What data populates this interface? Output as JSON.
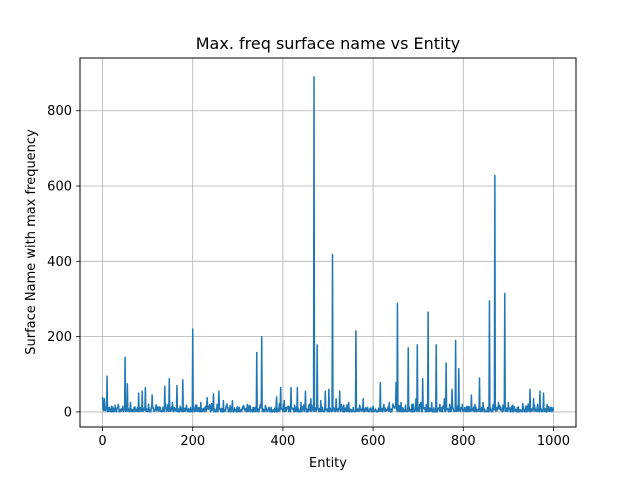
{
  "chart_data": {
    "type": "line",
    "title": "Max. freq surface name vs Entity",
    "xlabel": "Entity",
    "ylabel": "Surface Name with max frequency",
    "xlim": [
      -50,
      1050
    ],
    "ylim": [
      -40,
      940
    ],
    "x_ticks": [
      0,
      200,
      400,
      600,
      800,
      1000
    ],
    "y_ticks": [
      0,
      200,
      400,
      600,
      800
    ],
    "grid": true,
    "line_color": "#1f77b4",
    "series": [
      {
        "x_start": 0,
        "x_end": 1000,
        "baseline_range": [
          0,
          20
        ],
        "points": [
          [
            0,
            40
          ],
          [
            2,
            8
          ],
          [
            4,
            35
          ],
          [
            6,
            5
          ],
          [
            8,
            10
          ],
          [
            10,
            95
          ],
          [
            12,
            5
          ],
          [
            15,
            12
          ],
          [
            18,
            4
          ],
          [
            20,
            15
          ],
          [
            25,
            6
          ],
          [
            28,
            18
          ],
          [
            32,
            8
          ],
          [
            35,
            20
          ],
          [
            40,
            6
          ],
          [
            45,
            15
          ],
          [
            48,
            5
          ],
          [
            50,
            145
          ],
          [
            52,
            10
          ],
          [
            55,
            75
          ],
          [
            58,
            8
          ],
          [
            62,
            25
          ],
          [
            65,
            6
          ],
          [
            70,
            12
          ],
          [
            75,
            5
          ],
          [
            80,
            50
          ],
          [
            83,
            8
          ],
          [
            88,
            55
          ],
          [
            92,
            10
          ],
          [
            95,
            65
          ],
          [
            98,
            8
          ],
          [
            102,
            20
          ],
          [
            105,
            6
          ],
          [
            110,
            45
          ],
          [
            113,
            7
          ],
          [
            118,
            15
          ],
          [
            122,
            6
          ],
          [
            128,
            12
          ],
          [
            133,
            5
          ],
          [
            138,
            68
          ],
          [
            141,
            8
          ],
          [
            145,
            20
          ],
          [
            148,
            88
          ],
          [
            151,
            8
          ],
          [
            155,
            25
          ],
          [
            160,
            6
          ],
          [
            165,
            70
          ],
          [
            168,
            8
          ],
          [
            172,
            15
          ],
          [
            178,
            85
          ],
          [
            181,
            6
          ],
          [
            186,
            18
          ],
          [
            190,
            8
          ],
          [
            195,
            12
          ],
          [
            198,
            5
          ],
          [
            200,
            220
          ],
          [
            202,
            10
          ],
          [
            206,
            18
          ],
          [
            212,
            6
          ],
          [
            218,
            25
          ],
          [
            222,
            8
          ],
          [
            228,
            15
          ],
          [
            232,
            38
          ],
          [
            236,
            8
          ],
          [
            242,
            22
          ],
          [
            246,
            48
          ],
          [
            249,
            8
          ],
          [
            254,
            20
          ],
          [
            258,
            55
          ],
          [
            262,
            8
          ],
          [
            268,
            30
          ],
          [
            272,
            6
          ],
          [
            278,
            12
          ],
          [
            282,
            6
          ],
          [
            288,
            30
          ],
          [
            292,
            5
          ],
          [
            298,
            10
          ],
          [
            305,
            6
          ],
          [
            312,
            8
          ],
          [
            318,
            5
          ],
          [
            325,
            10
          ],
          [
            330,
            6
          ],
          [
            338,
            12
          ],
          [
            342,
            158
          ],
          [
            345,
            8
          ],
          [
            350,
            20
          ],
          [
            353,
            200
          ],
          [
            356,
            8
          ],
          [
            362,
            15
          ],
          [
            368,
            6
          ],
          [
            374,
            12
          ],
          [
            380,
            6
          ],
          [
            386,
            40
          ],
          [
            390,
            8
          ],
          [
            395,
            65
          ],
          [
            398,
            8
          ],
          [
            403,
            30
          ],
          [
            408,
            6
          ],
          [
            412,
            15
          ],
          [
            418,
            65
          ],
          [
            421,
            8
          ],
          [
            426,
            18
          ],
          [
            432,
            65
          ],
          [
            435,
            8
          ],
          [
            440,
            25
          ],
          [
            445,
            10
          ],
          [
            450,
            55
          ],
          [
            453,
            8
          ],
          [
            458,
            20
          ],
          [
            462,
            35
          ],
          [
            465,
            8
          ],
          [
            469,
            890
          ],
          [
            472,
            10
          ],
          [
            476,
            178
          ],
          [
            479,
            8
          ],
          [
            484,
            30
          ],
          [
            488,
            10
          ],
          [
            494,
            55
          ],
          [
            497,
            8
          ],
          [
            502,
            60
          ],
          [
            505,
            10
          ],
          [
            510,
            418
          ],
          [
            513,
            10
          ],
          [
            518,
            35
          ],
          [
            521,
            8
          ],
          [
            526,
            55
          ],
          [
            529,
            8
          ],
          [
            535,
            18
          ],
          [
            540,
            6
          ],
          [
            546,
            25
          ],
          [
            550,
            6
          ],
          [
            556,
            12
          ],
          [
            562,
            215
          ],
          [
            565,
            8
          ],
          [
            570,
            18
          ],
          [
            574,
            6
          ],
          [
            578,
            35
          ],
          [
            582,
            8
          ],
          [
            588,
            12
          ],
          [
            594,
            6
          ],
          [
            600,
            15
          ],
          [
            606,
            6
          ],
          [
            612,
            10
          ],
          [
            616,
            78
          ],
          [
            619,
            8
          ],
          [
            624,
            20
          ],
          [
            630,
            6
          ],
          [
            636,
            25
          ],
          [
            640,
            8
          ],
          [
            645,
            15
          ],
          [
            651,
            78
          ],
          [
            654,
            288
          ],
          [
            657,
            10
          ],
          [
            662,
            25
          ],
          [
            667,
            8
          ],
          [
            672,
            18
          ],
          [
            678,
            170
          ],
          [
            681,
            8
          ],
          [
            686,
            20
          ],
          [
            690,
            6
          ],
          [
            695,
            35
          ],
          [
            698,
            178
          ],
          [
            701,
            8
          ],
          [
            706,
            25
          ],
          [
            710,
            88
          ],
          [
            713,
            8
          ],
          [
            718,
            20
          ],
          [
            722,
            265
          ],
          [
            725,
            10
          ],
          [
            730,
            25
          ],
          [
            734,
            6
          ],
          [
            740,
            178
          ],
          [
            743,
            8
          ],
          [
            748,
            20
          ],
          [
            752,
            6
          ],
          [
            758,
            35
          ],
          [
            762,
            130
          ],
          [
            765,
            8
          ],
          [
            770,
            20
          ],
          [
            775,
            60
          ],
          [
            778,
            8
          ],
          [
            783,
            190
          ],
          [
            786,
            10
          ],
          [
            790,
            115
          ],
          [
            793,
            8
          ],
          [
            798,
            20
          ],
          [
            802,
            6
          ],
          [
            808,
            15
          ],
          [
            812,
            6
          ],
          [
            818,
            45
          ],
          [
            821,
            8
          ],
          [
            826,
            20
          ],
          [
            830,
            6
          ],
          [
            836,
            90
          ],
          [
            839,
            8
          ],
          [
            844,
            25
          ],
          [
            848,
            6
          ],
          [
            854,
            12
          ],
          [
            858,
            295
          ],
          [
            861,
            10
          ],
          [
            866,
            20
          ],
          [
            870,
            628
          ],
          [
            873,
            10
          ],
          [
            878,
            25
          ],
          [
            882,
            6
          ],
          [
            888,
            18
          ],
          [
            892,
            315
          ],
          [
            895,
            10
          ],
          [
            900,
            25
          ],
          [
            905,
            6
          ],
          [
            910,
            18
          ],
          [
            915,
            6
          ],
          [
            920,
            12
          ],
          [
            926,
            6
          ],
          [
            932,
            22
          ],
          [
            936,
            6
          ],
          [
            942,
            15
          ],
          [
            948,
            60
          ],
          [
            951,
            8
          ],
          [
            956,
            35
          ],
          [
            960,
            8
          ],
          [
            965,
            20
          ],
          [
            970,
            55
          ],
          [
            973,
            8
          ],
          [
            978,
            50
          ],
          [
            981,
            8
          ],
          [
            986,
            20
          ],
          [
            990,
            6
          ],
          [
            995,
            12
          ],
          [
            1000,
            3
          ]
        ]
      }
    ]
  }
}
